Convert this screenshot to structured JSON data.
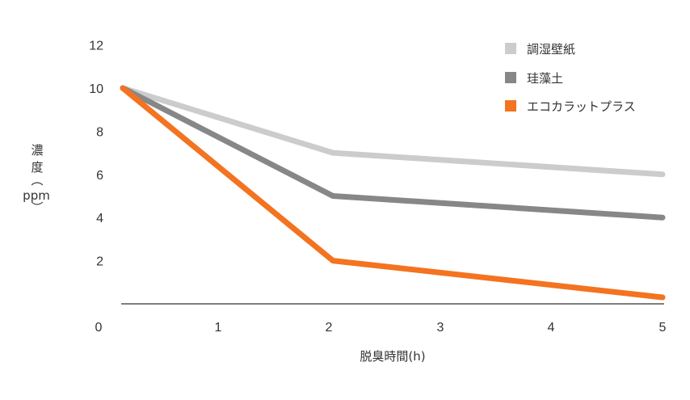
{
  "chart_data": {
    "type": "line",
    "x": [
      0,
      2,
      5
    ],
    "xticks": [
      "0",
      "1",
      "2",
      "3",
      "4",
      "5"
    ],
    "yticks": [
      "2",
      "4",
      "6",
      "8",
      "10",
      "12"
    ],
    "xlim": [
      0,
      5
    ],
    "ylim": [
      0,
      12
    ],
    "xlabel": "脱臭時間(h)",
    "ylabel": "濃度(ppm)",
    "grid": false,
    "legend_position": "top-right",
    "series": [
      {
        "name": "調湿壁紙",
        "values": [
          10,
          7,
          6
        ],
        "color": "#cccccc"
      },
      {
        "name": "珪藻土",
        "values": [
          10,
          5,
          4
        ],
        "color": "#878787"
      },
      {
        "name": "エコカラットプラス",
        "values": [
          10,
          2,
          0.3
        ],
        "color": "#f37321"
      }
    ]
  }
}
